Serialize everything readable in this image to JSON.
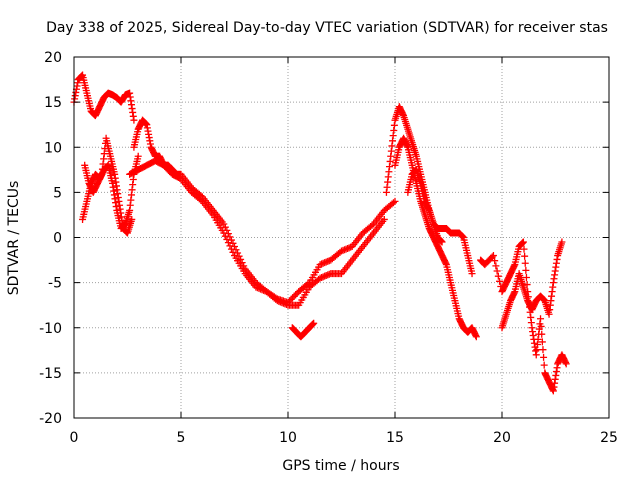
{
  "chart_data": {
    "type": "scatter",
    "title": "Day 338 of 2025, Sidereal Day-to-day VTEC variation (SDTVAR) for receiver stas",
    "xlabel": "GPS time / hours",
    "ylabel": "SDTVAR / TECUs",
    "xlim": [
      0,
      25
    ],
    "ylim": [
      -20,
      20
    ],
    "x_ticks": [
      0,
      5,
      10,
      15,
      20,
      25
    ],
    "y_ticks": [
      -20,
      -15,
      -10,
      -5,
      0,
      5,
      10,
      15,
      20
    ],
    "x_tick_labels": [
      "0",
      "5",
      "10",
      "15",
      "20",
      "25"
    ],
    "y_tick_labels": [
      "-20",
      "-15",
      "-10",
      "-5",
      "0",
      "5",
      "10",
      "15",
      "20"
    ],
    "grid": true,
    "marker": "+",
    "color": "#ff0000",
    "series": [
      {
        "name": "trace-a",
        "x": [
          0.0,
          0.2,
          0.4,
          0.6,
          0.8,
          1.0,
          1.2,
          1.4,
          1.6,
          1.8,
          2.0,
          2.2,
          2.4,
          2.6,
          2.8
        ],
        "y": [
          15.0,
          17.5,
          18.0,
          16.0,
          14.0,
          13.5,
          14.5,
          15.5,
          16.0,
          15.8,
          15.5,
          15.0,
          15.8,
          16.0,
          13.0
        ]
      },
      {
        "name": "trace-b",
        "x": [
          0.4,
          0.6,
          0.8,
          1.0,
          1.2,
          1.4,
          1.6,
          1.8,
          2.0,
          2.2,
          2.4,
          2.6,
          2.8,
          3.0
        ],
        "y": [
          2.0,
          4.0,
          6.0,
          7.0,
          6.5,
          7.5,
          8.0,
          6.0,
          3.0,
          1.0,
          1.5,
          3.0,
          7.0,
          9.0
        ]
      },
      {
        "name": "trace-c",
        "x": [
          0.5,
          0.7,
          0.9,
          1.1,
          1.3,
          1.5,
          1.7,
          1.9,
          2.1,
          2.3,
          2.5,
          2.7
        ],
        "y": [
          8.0,
          6.0,
          5.0,
          6.0,
          7.0,
          11.0,
          9.0,
          7.0,
          4.0,
          1.0,
          0.5,
          2.0
        ]
      },
      {
        "name": "trace-d",
        "x": [
          2.8,
          3.0,
          3.2,
          3.4,
          3.6,
          3.8,
          4.0,
          4.2,
          4.4,
          4.6,
          4.8,
          5.0,
          5.5,
          6.0,
          6.5,
          7.0,
          7.5,
          8.0,
          8.5,
          9.0,
          9.5,
          10.0,
          10.5,
          11.0,
          11.5,
          12.0,
          12.5,
          13.0,
          13.5,
          14.0,
          14.5
        ],
        "y": [
          10.0,
          12.0,
          13.0,
          12.5,
          10.0,
          9.0,
          9.0,
          8.0,
          8.0,
          7.5,
          7.0,
          7.0,
          5.5,
          4.5,
          3.0,
          1.5,
          -1.0,
          -3.5,
          -5.0,
          -6.0,
          -7.0,
          -7.5,
          -7.5,
          -5.5,
          -4.5,
          -4.0,
          -4.0,
          -2.5,
          -1.0,
          0.5,
          2.0
        ]
      },
      {
        "name": "trace-e",
        "x": [
          2.6,
          3.0,
          3.4,
          3.8,
          4.2,
          4.6,
          5.0,
          5.5,
          6.0,
          6.5,
          7.0,
          7.5,
          8.0,
          8.5,
          9.0,
          9.5,
          10.0,
          10.5,
          11.0,
          11.5,
          12.0,
          12.5,
          13.0,
          13.5,
          14.0,
          14.5,
          15.0
        ],
        "y": [
          7.0,
          7.5,
          8.0,
          8.5,
          8.0,
          7.0,
          6.5,
          5.0,
          4.0,
          2.5,
          0.5,
          -2.0,
          -4.0,
          -5.5,
          -6.0,
          -6.8,
          -7.2,
          -6.0,
          -5.0,
          -3.0,
          -2.5,
          -1.5,
          -1.0,
          0.5,
          1.5,
          3.0,
          4.0
        ]
      },
      {
        "name": "trace-f",
        "x": [
          10.2,
          10.4,
          10.6,
          10.8,
          11.0,
          11.2
        ],
        "y": [
          -10.0,
          -10.5,
          -11.0,
          -10.5,
          -10.0,
          -9.5
        ]
      },
      {
        "name": "trace-g",
        "x": [
          14.6,
          14.8,
          15.0,
          15.2,
          15.4,
          15.6,
          15.8,
          16.0,
          16.2,
          16.4,
          16.6,
          16.8,
          17.0,
          17.2,
          17.4,
          17.6,
          17.8,
          18.0,
          18.2,
          18.4,
          18.6
        ],
        "y": [
          5.0,
          9.0,
          13.0,
          14.5,
          13.5,
          12.0,
          10.5,
          9.0,
          7.0,
          5.0,
          3.0,
          1.5,
          1.0,
          1.0,
          1.0,
          0.5,
          0.5,
          0.5,
          0.0,
          -2.0,
          -4.0
        ]
      },
      {
        "name": "trace-h",
        "x": [
          15.0,
          15.2,
          15.4,
          15.6,
          15.8,
          16.0,
          16.2,
          16.4,
          16.6,
          16.8,
          17.0,
          17.2,
          17.4,
          17.6,
          17.8,
          18.0,
          18.2,
          18.4,
          18.6,
          18.8
        ],
        "y": [
          8.0,
          10.0,
          11.0,
          10.0,
          8.0,
          6.0,
          4.0,
          2.5,
          1.0,
          0.0,
          -1.0,
          -2.0,
          -3.0,
          -5.0,
          -7.0,
          -9.0,
          -10.0,
          -10.5,
          -10.0,
          -11.0
        ]
      },
      {
        "name": "trace-i",
        "x": [
          15.6,
          15.8,
          16.0,
          16.2,
          16.4,
          16.6,
          16.8,
          17.0,
          17.2
        ],
        "y": [
          5.0,
          7.0,
          7.5,
          6.0,
          4.0,
          3.0,
          1.5,
          0.0,
          -0.5
        ]
      },
      {
        "name": "trace-j",
        "x": [
          19.0,
          19.2,
          19.6,
          20.0,
          20.2,
          20.4,
          20.6,
          20.8,
          21.0,
          21.2,
          21.4,
          21.6,
          21.8,
          22.0,
          22.2,
          22.4,
          22.6,
          22.8,
          23.0
        ],
        "y": [
          -2.5,
          -3.0,
          -2.0,
          -6.0,
          -5.0,
          -4.0,
          -3.0,
          -1.0,
          -0.5,
          -6.0,
          -10.0,
          -13.0,
          -9.0,
          -15.0,
          -16.0,
          -17.0,
          -14.0,
          -13.0,
          -14.0
        ]
      },
      {
        "name": "trace-k",
        "x": [
          20.0,
          20.2,
          20.4,
          20.6,
          20.8,
          21.0,
          21.2,
          21.4,
          21.6,
          21.8,
          22.0,
          22.2,
          22.4,
          22.6,
          22.8
        ],
        "y": [
          -10.0,
          -8.5,
          -7.0,
          -6.0,
          -4.0,
          -5.5,
          -7.0,
          -8.0,
          -7.0,
          -6.5,
          -7.0,
          -8.5,
          -5.0,
          -2.0,
          -0.5
        ]
      }
    ]
  }
}
